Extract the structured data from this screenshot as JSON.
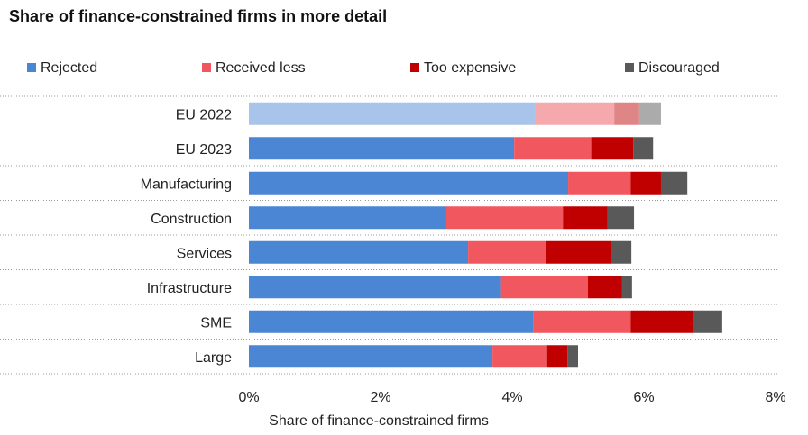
{
  "chart_data": {
    "type": "bar",
    "orientation": "horizontal",
    "stacked": true,
    "title": "Share of finance-constrained firms in more detail",
    "xlabel": "Share of finance-constrained firms",
    "ylabel": "",
    "xlim": [
      0,
      8
    ],
    "xticks": [
      0,
      2,
      4,
      6,
      8
    ],
    "xtick_labels": [
      "0%",
      "2%",
      "4%",
      "6%",
      "8%"
    ],
    "legend_position": "top",
    "categories": [
      "EU 2022",
      "EU 2023",
      "Manufacturing",
      "Construction",
      "Services",
      "Infrastructure",
      "SME",
      "Large"
    ],
    "series": [
      {
        "name": "Rejected",
        "color": "#4A86D4",
        "highlight_color": "#A8C4EA",
        "values": [
          4.35,
          4.03,
          4.85,
          3.0,
          3.33,
          3.83,
          4.32,
          3.7
        ]
      },
      {
        "name": "Received less",
        "color": "#F0575E",
        "highlight_color": "#F5A9AD",
        "values": [
          1.2,
          1.17,
          0.95,
          1.77,
          1.18,
          1.32,
          1.48,
          0.83
        ]
      },
      {
        "name": "Too expensive",
        "color": "#C00000",
        "highlight_color": "#E08585",
        "values": [
          0.38,
          0.64,
          0.46,
          0.68,
          0.99,
          0.52,
          0.94,
          0.31
        ]
      },
      {
        "name": "Discouraged",
        "color": "#595959",
        "highlight_color": "#ABABAB",
        "values": [
          0.33,
          0.3,
          0.4,
          0.4,
          0.31,
          0.15,
          0.45,
          0.16
        ]
      }
    ],
    "highlighted_categories": [
      "EU 2022"
    ]
  }
}
